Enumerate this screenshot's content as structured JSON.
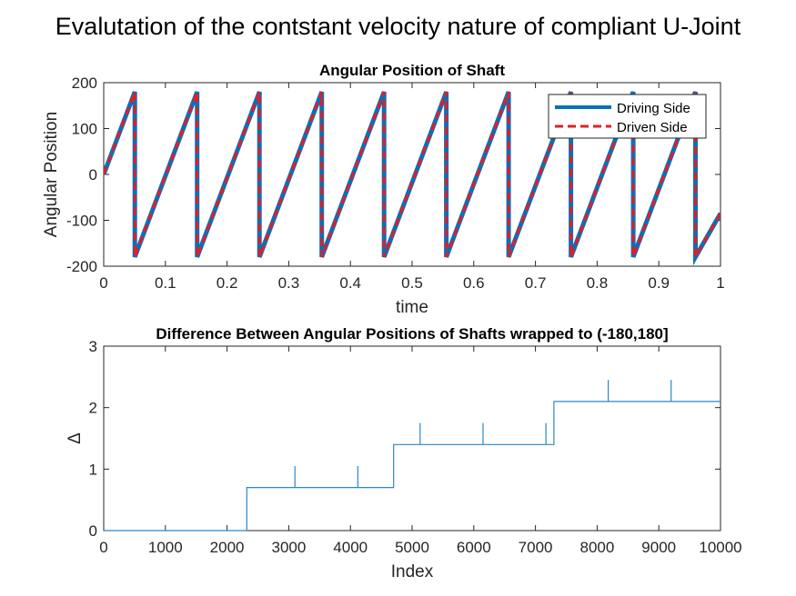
{
  "figure": {
    "suptitle": "Evalutation of the contstant velocity nature of compliant U-Joint"
  },
  "colors": {
    "driving": "#0072BD",
    "driven": "#E21E26",
    "step": "#2E86C8",
    "axis": "#262626"
  },
  "chart_data": [
    {
      "type": "line",
      "title": "Angular Position of Shaft",
      "xlabel": "time",
      "ylabel": "Angular Position",
      "xlim": [
        0,
        1
      ],
      "ylim": [
        -200,
        200
      ],
      "xticks": [
        0,
        0.1,
        0.2,
        0.3,
        0.4,
        0.5,
        0.6,
        0.7,
        0.8,
        0.9,
        1
      ],
      "xtick_labels": [
        "0",
        "0.1",
        "0.2",
        "0.3",
        "0.4",
        "0.5",
        "0.6",
        "0.7",
        "0.8",
        "0.9",
        "1"
      ],
      "yticks": [
        -200,
        -100,
        0,
        100,
        200
      ],
      "ytick_labels": [
        "-200",
        "-100",
        "0",
        "100",
        "200"
      ],
      "grid": false,
      "legend": {
        "location": "top-right",
        "entries": [
          "Driving Side",
          "Driven Side"
        ]
      },
      "series": [
        {
          "name": "Driving Side",
          "style": "solid",
          "wrap_times": [
            0.0505,
            0.1515,
            0.2525,
            0.3535,
            0.4545,
            0.5555,
            0.6565,
            0.7575,
            0.8585,
            0.9595
          ],
          "x": [
            0,
            0.0505,
            0.0505,
            0.1515,
            0.1515,
            0.2525,
            0.2525,
            0.3535,
            0.3535,
            0.4545,
            0.4545,
            0.5555,
            0.5555,
            0.6565,
            0.6565,
            0.7575,
            0.7575,
            0.8585,
            0.8585,
            0.9595,
            0.9595,
            1
          ],
          "y": [
            0,
            180,
            -180,
            180,
            -180,
            180,
            -180,
            180,
            -180,
            180,
            -180,
            180,
            -180,
            180,
            -180,
            180,
            -180,
            180,
            -180,
            180,
            -180,
            -85
          ]
        },
        {
          "name": "Driven Side",
          "style": "dashed",
          "x": [
            0,
            0.0505,
            0.0505,
            0.1515,
            0.1515,
            0.2525,
            0.2525,
            0.3535,
            0.3535,
            0.4545,
            0.4545,
            0.5555,
            0.5555,
            0.6565,
            0.6565,
            0.7575,
            0.7575,
            0.8585,
            0.8585,
            0.9595,
            0.9595,
            1
          ],
          "y": [
            0,
            180,
            -180,
            180,
            -180,
            180,
            -180,
            180,
            -180,
            180,
            -180,
            180,
            -180,
            180,
            -180,
            180,
            -180,
            180,
            -180,
            180,
            -180,
            -85
          ]
        }
      ]
    },
    {
      "type": "line",
      "title": "Difference Between Angular Positions of Shafts wrapped to (-180,180]",
      "xlabel": "Index",
      "ylabel": "Δ",
      "xlim": [
        0,
        10000
      ],
      "ylim": [
        0,
        3
      ],
      "xticks": [
        0,
        1000,
        2000,
        3000,
        4000,
        5000,
        6000,
        7000,
        8000,
        9000,
        10000
      ],
      "xtick_labels": [
        "0",
        "1000",
        "2000",
        "3000",
        "4000",
        "5000",
        "6000",
        "7000",
        "8000",
        "9000",
        "10000"
      ],
      "yticks": [
        0,
        1,
        2,
        3
      ],
      "ytick_labels": [
        "0",
        "1",
        "2",
        "3"
      ],
      "grid": false,
      "series": [
        {
          "steps": [
            {
              "from": 0,
              "to": 2320,
              "value": 0
            },
            {
              "from": 2320,
              "to": 4700,
              "value": 0.7
            },
            {
              "from": 4700,
              "to": 7300,
              "value": 1.4
            },
            {
              "from": 7300,
              "to": 10000,
              "value": 2.1
            }
          ],
          "spikes": [
            {
              "x": 3100,
              "value": 1.05
            },
            {
              "x": 4120,
              "value": 1.05
            },
            {
              "x": 5130,
              "value": 1.75
            },
            {
              "x": 6150,
              "value": 1.75
            },
            {
              "x": 7170,
              "value": 1.75
            },
            {
              "x": 8180,
              "value": 2.45
            },
            {
              "x": 9200,
              "value": 2.45
            }
          ]
        }
      ]
    }
  ]
}
